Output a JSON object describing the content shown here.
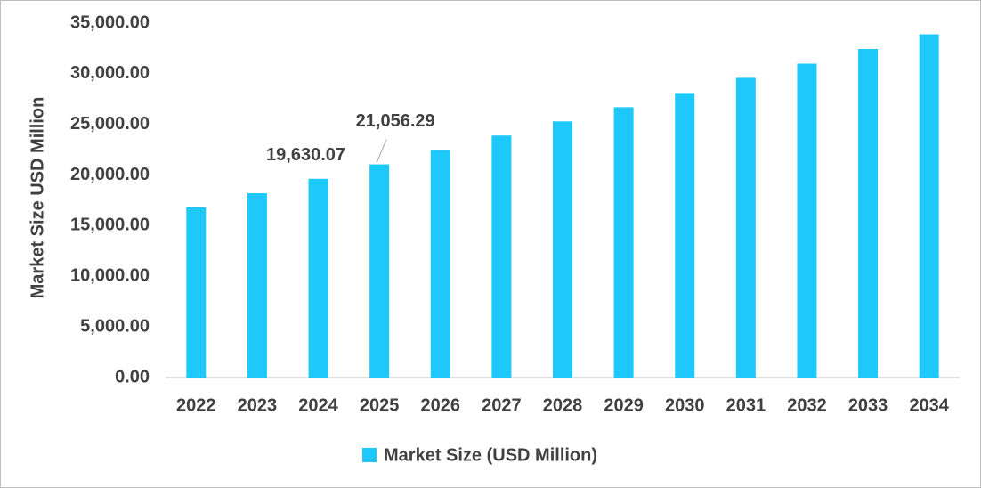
{
  "chart_data": {
    "type": "bar",
    "y_label": "Market Size USD Million",
    "categories": [
      "2022",
      "2023",
      "2024",
      "2025",
      "2026",
      "2027",
      "2028",
      "2029",
      "2030",
      "2031",
      "2032",
      "2033",
      "2034"
    ],
    "series": [
      {
        "name": "Market Size (USD Million)",
        "color": "#1fc8fa",
        "values": [
          16800,
          18200,
          19630.07,
          21056.29,
          22500,
          23900,
          25300,
          26700,
          28100,
          29600,
          31000,
          32450,
          33900
        ],
        "value_labels": [
          null,
          null,
          "19,630.07",
          "21,056.29",
          null,
          null,
          null,
          null,
          null,
          null,
          null,
          null,
          null
        ]
      }
    ],
    "ylim": [
      0,
      35000
    ],
    "yticks": [
      {
        "value": 0,
        "label": "0.00"
      },
      {
        "value": 5000,
        "label": "5,000.00"
      },
      {
        "value": 10000,
        "label": "10,000.00"
      },
      {
        "value": 15000,
        "label": "15,000.00"
      },
      {
        "value": 20000,
        "label": "20,000.00"
      },
      {
        "value": 25000,
        "label": "25,000.00"
      },
      {
        "value": 30000,
        "label": "30,000.00"
      },
      {
        "value": 35000,
        "label": "35,000.00"
      }
    ],
    "grid": false,
    "legend": "bottom"
  }
}
